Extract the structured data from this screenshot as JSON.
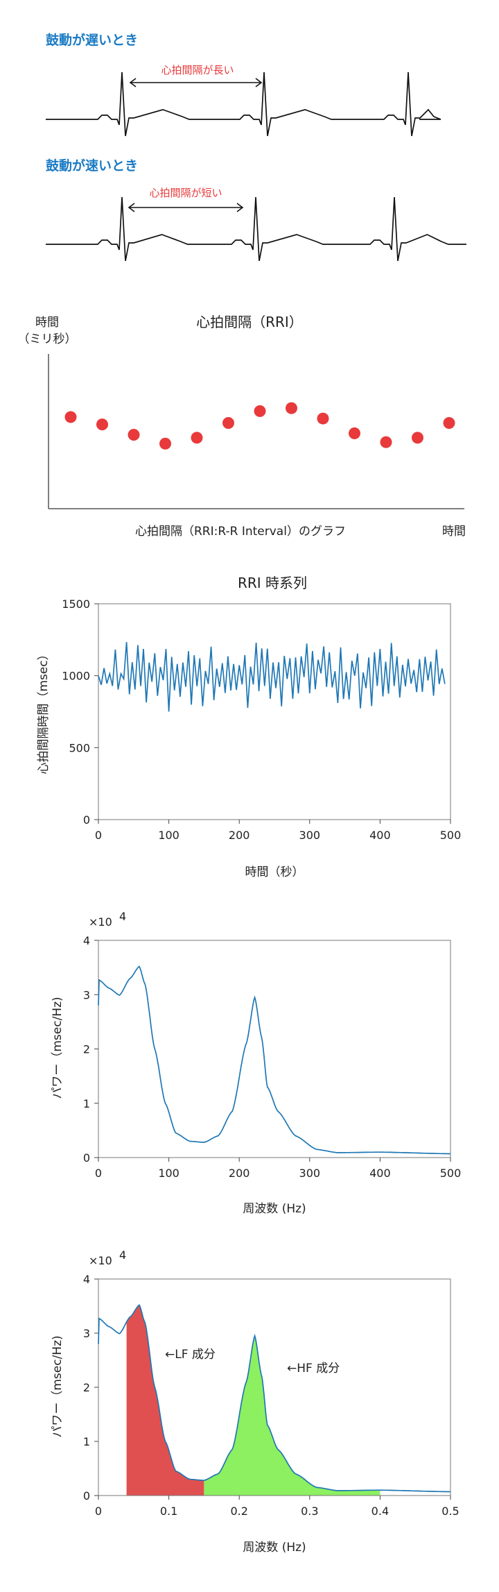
{
  "ecg": {
    "slow_title": "鼓動が遅いとき",
    "slow_interval_label": "心拍間隔が長い",
    "fast_title": "鼓動が速いとき",
    "fast_interval_label": "心拍間隔が短い",
    "line_color": "#111111",
    "title_color": "#1a7bc4",
    "label_color": "#e8393b"
  },
  "colors": {
    "blue": "#1f77b4",
    "axis": "#444444",
    "dot": "#e8393b",
    "lf": "#e05050",
    "hf": "#8cf060"
  },
  "chart_data": [
    {
      "type": "scatter",
      "title": "心拍間隔（RRI）",
      "ylabel_line1": "時間",
      "ylabel_line2": "（ミリ秒）",
      "xlabel": "心拍間隔（RRI:R-R Interval）のグラフ",
      "xlabel_right": "時間",
      "x": [
        1,
        2,
        3,
        4,
        5,
        6,
        7,
        8,
        9,
        10,
        11,
        12,
        13
      ],
      "y": [
        0.62,
        0.57,
        0.5,
        0.44,
        0.48,
        0.58,
        0.66,
        0.68,
        0.61,
        0.51,
        0.45,
        0.48,
        0.58
      ]
    },
    {
      "type": "line",
      "title": "RRI 時系列",
      "xlabel": "時間（秒）",
      "ylabel": "心拍間隔時間（msec）",
      "xlim": [
        0,
        500
      ],
      "ylim": [
        0,
        1500
      ],
      "xticks": [
        "0",
        "100",
        "200",
        "300",
        "400",
        "500"
      ],
      "yticks": [
        "0",
        "500",
        "1000",
        "1500"
      ],
      "series": [
        {
          "x_step": 4,
          "values": [
            1000,
            936,
            1053,
            946,
            1014,
            929,
            1182,
            904,
            1014,
            978,
            1234,
            871,
            1094,
            904,
            1213,
            928,
            1186,
            814,
            1091,
            958,
            1156,
            860,
            1060,
            969,
            1186,
            750,
            1131,
            898,
            1082,
            853,
            1092,
            923,
            1171,
            798,
            1142,
            927,
            1121,
            788,
            1033,
            943,
            1202,
            830,
            1049,
            922,
            1087,
            880,
            1135,
            897,
            1082,
            901,
            1073,
            939,
            1144,
            777,
            1063,
            939,
            1230,
            893,
            1190,
            929,
            1188,
            839,
            1092,
            914,
            1094,
            787,
            1138,
            977,
            1122,
            839,
            1127,
            877,
            1135,
            990,
            1223,
            878,
            1172,
            906,
            1111,
            1016,
            1204,
            922,
            1163,
            919,
            1031,
            811,
            1197,
            838,
            1025,
            835,
            1104,
            1000,
            1154,
            773,
            1023,
            914,
            1127,
            789,
            1163,
            929,
            1186,
            856,
            1097,
            875,
            1228,
            928,
            1135,
            848,
            1076,
            926,
            1116,
            945,
            1040,
            886,
            1115,
            888,
            1132,
            967,
            1098,
            861,
            1182,
            942,
            1050,
            943
          ]
        }
      ]
    },
    {
      "type": "line",
      "xlabel": "周波数 (Hz)",
      "ylabel": "パワー（msec/Hz)",
      "scale_label": "×10",
      "scale_exp": "4",
      "xlim": [
        0,
        500
      ],
      "ylim": [
        0,
        4
      ],
      "xticks": [
        "0",
        "100",
        "200",
        "300",
        "400",
        "500"
      ],
      "yticks": [
        "0",
        "1",
        "2",
        "3",
        "4"
      ],
      "series": [
        {
          "points": [
            [
              0,
              2.8
            ],
            [
              1,
              3.27
            ],
            [
              15,
              3.12
            ],
            [
              30,
              2.99
            ],
            [
              45,
              3.3
            ],
            [
              58,
              3.52
            ],
            [
              66,
              3.2
            ],
            [
              80,
              2.0
            ],
            [
              95,
              1.0
            ],
            [
              110,
              0.45
            ],
            [
              130,
              0.3
            ],
            [
              150,
              0.28
            ],
            [
              170,
              0.4
            ],
            [
              190,
              0.85
            ],
            [
              210,
              2.1
            ],
            [
              222,
              2.95
            ],
            [
              232,
              2.2
            ],
            [
              240,
              1.3
            ],
            [
              255,
              0.85
            ],
            [
              280,
              0.4
            ],
            [
              310,
              0.15
            ],
            [
              340,
              0.09
            ],
            [
              400,
              0.1
            ],
            [
              500,
              0.07
            ]
          ]
        }
      ]
    },
    {
      "type": "area",
      "xlabel": "周波数 (Hz)",
      "ylabel": "パワー（msec/Hz)",
      "scale_label": "×10",
      "scale_exp": "4",
      "xlim": [
        0,
        0.5
      ],
      "ylim": [
        0,
        4
      ],
      "xticks": [
        "0",
        "0.1",
        "0.2",
        "0.3",
        "0.4",
        "0.5"
      ],
      "yticks": [
        "0",
        "1",
        "2",
        "3",
        "4"
      ],
      "bands": [
        {
          "name": "LF",
          "from": 0.04,
          "to": 0.15,
          "annotation": "←LF 成分"
        },
        {
          "name": "HF",
          "from": 0.15,
          "to": 0.4,
          "annotation": "←HF 成分"
        }
      ]
    }
  ]
}
